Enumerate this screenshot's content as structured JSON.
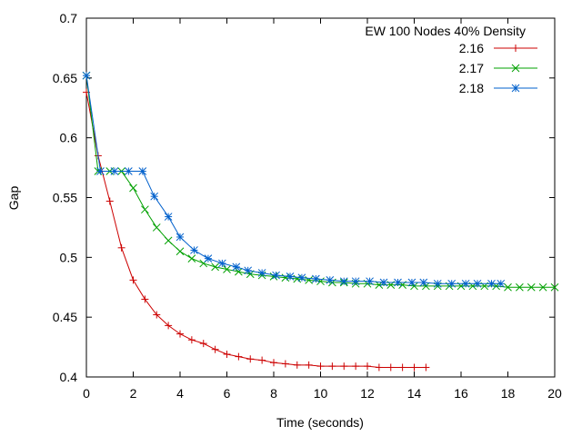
{
  "chart_data": {
    "type": "line",
    "title": "",
    "xlabel": "Time (seconds)",
    "ylabel": "Gap",
    "xlim": [
      0,
      20
    ],
    "ylim": [
      0.4,
      0.7
    ],
    "x_ticks": [
      0,
      2,
      4,
      6,
      8,
      10,
      12,
      14,
      16,
      18,
      20
    ],
    "y_ticks": [
      0.4,
      0.45,
      0.5,
      0.55,
      0.6,
      0.65,
      0.7
    ],
    "x_tick_labels": [
      "0",
      "2",
      "4",
      "6",
      "8",
      "10",
      "12",
      "14",
      "16",
      "18",
      "20"
    ],
    "y_tick_labels": [
      "0.4",
      "0.45",
      "0.5",
      "0.55",
      "0.6",
      "0.65",
      "0.7"
    ],
    "grid": false,
    "legend": {
      "title": "EW 100 Nodes 40% Density",
      "placement": "top-right"
    },
    "series": [
      {
        "name": "2.16",
        "color": "#cc0000",
        "marker": "plus",
        "x": [
          0,
          0.5,
          1.0,
          1.5,
          2.0,
          2.5,
          3.0,
          3.5,
          4.0,
          4.5,
          5.0,
          5.5,
          6.0,
          6.5,
          7.0,
          7.5,
          8.0,
          8.5,
          9.0,
          9.5,
          10.0,
          10.5,
          11.0,
          11.5,
          12.0,
          12.5,
          13.0,
          13.5,
          14.0,
          14.5
        ],
        "y": [
          0.638,
          0.585,
          0.547,
          0.508,
          0.481,
          0.465,
          0.452,
          0.443,
          0.436,
          0.431,
          0.428,
          0.423,
          0.419,
          0.417,
          0.415,
          0.414,
          0.412,
          0.411,
          0.41,
          0.41,
          0.409,
          0.409,
          0.409,
          0.409,
          0.409,
          0.408,
          0.408,
          0.408,
          0.408,
          0.408
        ]
      },
      {
        "name": "2.17",
        "color": "#00a000",
        "marker": "x",
        "x": [
          0,
          0.5,
          1.0,
          1.5,
          2.0,
          2.5,
          3.0,
          3.5,
          4.0,
          4.5,
          5.0,
          5.5,
          6.0,
          6.5,
          7.0,
          7.5,
          8.0,
          8.5,
          9.0,
          9.5,
          10.0,
          10.5,
          11.0,
          11.5,
          12.0,
          12.5,
          13.0,
          13.5,
          14.0,
          14.5,
          15.0,
          15.5,
          16.0,
          16.5,
          17.0,
          17.5,
          18.0,
          18.5,
          19.0,
          19.5,
          20.0
        ],
        "y": [
          0.652,
          0.572,
          0.572,
          0.572,
          0.558,
          0.54,
          0.525,
          0.514,
          0.505,
          0.499,
          0.495,
          0.492,
          0.49,
          0.488,
          0.486,
          0.485,
          0.484,
          0.483,
          0.482,
          0.481,
          0.48,
          0.479,
          0.479,
          0.478,
          0.478,
          0.477,
          0.477,
          0.477,
          0.476,
          0.476,
          0.476,
          0.476,
          0.476,
          0.476,
          0.476,
          0.476,
          0.475,
          0.475,
          0.475,
          0.475,
          0.475
        ]
      },
      {
        "name": "2.18",
        "color": "#0060cc",
        "marker": "star",
        "x": [
          0,
          0.6,
          1.2,
          1.8,
          2.4,
          2.9,
          3.5,
          4.0,
          4.6,
          5.2,
          5.8,
          6.4,
          6.9,
          7.5,
          8.1,
          8.7,
          9.2,
          9.8,
          10.4,
          11.0,
          11.5,
          12.1,
          12.7,
          13.3,
          13.9,
          14.4,
          15.0,
          15.6,
          16.2,
          16.7,
          17.3,
          17.7
        ],
        "y": [
          0.652,
          0.572,
          0.572,
          0.572,
          0.572,
          0.551,
          0.534,
          0.517,
          0.506,
          0.499,
          0.495,
          0.492,
          0.489,
          0.487,
          0.485,
          0.484,
          0.483,
          0.482,
          0.481,
          0.48,
          0.48,
          0.48,
          0.479,
          0.479,
          0.479,
          0.479,
          0.478,
          0.478,
          0.478,
          0.478,
          0.478,
          0.478
        ]
      }
    ]
  }
}
